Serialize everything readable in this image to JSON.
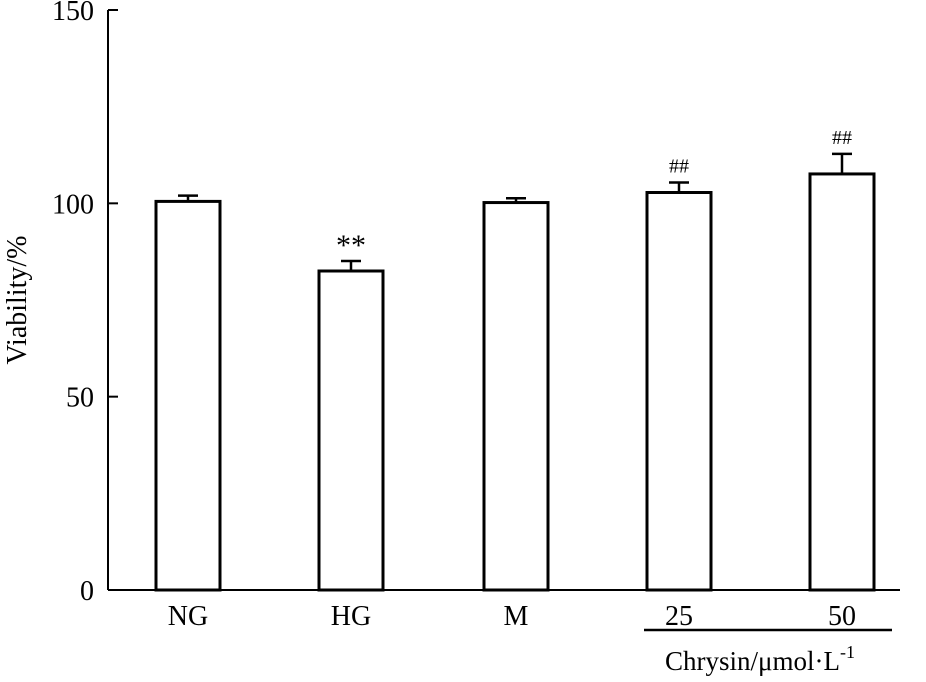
{
  "chart_data": {
    "type": "bar",
    "ylabel": "Viability/%",
    "ylim": [
      0,
      150
    ],
    "yticks": [
      0,
      50,
      100,
      150
    ],
    "categories": [
      "NG",
      "HG",
      "M",
      "25",
      "50"
    ],
    "values": [
      100.5,
      82.5,
      100.2,
      102.8,
      107.6
    ],
    "errors": [
      1.5,
      2.6,
      1.1,
      2.6,
      5.2
    ],
    "significance": [
      "",
      "**",
      "",
      "##",
      "##"
    ],
    "group_label": {
      "text": "Chrysin/μmol·L",
      "superscript": "-1",
      "spans_categories": [
        "25",
        "50"
      ]
    },
    "colors": {
      "bar_fill": "#ffffff",
      "bar_stroke": "#000000"
    },
    "grid": false,
    "legend": "none"
  }
}
